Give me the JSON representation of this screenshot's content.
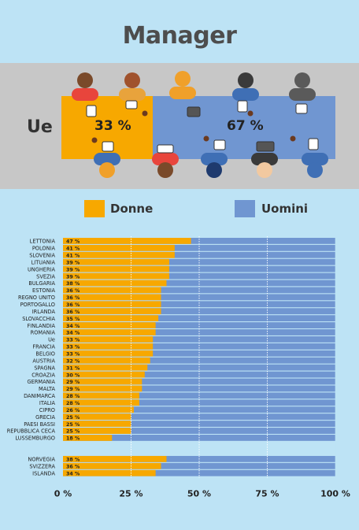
{
  "title": "Manager",
  "banner": {
    "region": "Ue",
    "women_share": "33 %",
    "men_share": "67 %"
  },
  "legend": [
    {
      "label": "Donne",
      "color": "#f7a800"
    },
    {
      "label": "Uomini",
      "color": "#7096d1"
    }
  ],
  "colors": {
    "background": "#bde3f5",
    "band": "#c7c7c7",
    "title": "#4d4d4d"
  },
  "chart_data": {
    "type": "bar",
    "orientation": "horizontal",
    "stacked": true,
    "xlim": [
      0,
      100
    ],
    "xticks": [
      "0 %",
      "25 %",
      "50 %",
      "75 %",
      "100 %"
    ],
    "series": [
      {
        "name": "Donne",
        "color": "#f7a800"
      },
      {
        "name": "Uomini",
        "color": "#7096d1"
      }
    ],
    "groups": [
      {
        "rows": [
          {
            "label": "LETTONIA",
            "donne": 47,
            "text": "47 %"
          },
          {
            "label": "POLONIA",
            "donne": 41,
            "text": "41 %"
          },
          {
            "label": "SLOVENIA",
            "donne": 41,
            "text": "41 %"
          },
          {
            "label": "LITUANIA",
            "donne": 39,
            "text": "39 %"
          },
          {
            "label": "UNGHERIA",
            "donne": 39,
            "text": "39 %"
          },
          {
            "label": "SVEZIA",
            "donne": 39,
            "text": "39 %"
          },
          {
            "label": "BULGARIA",
            "donne": 38,
            "text": "38 %"
          },
          {
            "label": "ESTONIA",
            "donne": 36,
            "text": "36 %"
          },
          {
            "label": "REGNO UNITO",
            "donne": 36,
            "text": "36 %"
          },
          {
            "label": "PORTOGALLO",
            "donne": 36,
            "text": "36 %"
          },
          {
            "label": "IRLANDA",
            "donne": 36,
            "text": "36 %"
          },
          {
            "label": "SLOVACCHIA",
            "donne": 35,
            "text": "35 %"
          },
          {
            "label": "FINLANDIA",
            "donne": 34,
            "text": "34 %"
          },
          {
            "label": "ROMANIA",
            "donne": 34,
            "text": "34 %"
          },
          {
            "label": "Ue",
            "donne": 33,
            "text": "33 %"
          },
          {
            "label": "FRANCIA",
            "donne": 33,
            "text": "33 %"
          },
          {
            "label": "BELGIO",
            "donne": 33,
            "text": "33 %"
          },
          {
            "label": "AUSTRIA",
            "donne": 32,
            "text": "32 %"
          },
          {
            "label": "SPAGNA",
            "donne": 31,
            "text": "31 %"
          },
          {
            "label": "CROAZIA",
            "donne": 30,
            "text": "30 %"
          },
          {
            "label": "GERMANIA",
            "donne": 29,
            "text": "29 %"
          },
          {
            "label": "MALTA",
            "donne": 29,
            "text": "29 %"
          },
          {
            "label": "DANIMARCA",
            "donne": 28,
            "text": "28 %"
          },
          {
            "label": "ITALIA",
            "donne": 28,
            "text": "28 %"
          },
          {
            "label": "CIPRO",
            "donne": 26,
            "text": "26 %"
          },
          {
            "label": "GRECIA",
            "donne": 25,
            "text": "25 %"
          },
          {
            "label": "PAESI BASSI",
            "donne": 25,
            "text": "25 %"
          },
          {
            "label": "REPUBBLICA CECA",
            "donne": 25,
            "text": "25 %"
          },
          {
            "label": "LUSSEMBURGO",
            "donne": 18,
            "text": "18 %"
          }
        ]
      },
      {
        "rows": [
          {
            "label": "NORVEGIA",
            "donne": 38,
            "text": "38 %"
          },
          {
            "label": "SVIZZERA",
            "donne": 36,
            "text": "36 %"
          },
          {
            "label": "ISLANDA",
            "donne": 34,
            "text": "34 %"
          }
        ]
      }
    ]
  }
}
